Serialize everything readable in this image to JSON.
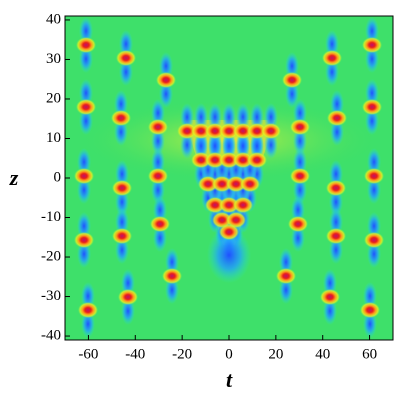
{
  "chart_data": {
    "type": "heatmap",
    "x_label": "t",
    "y_label": "z",
    "xlim": [
      -70,
      70
    ],
    "ylim": [
      -41,
      41
    ],
    "xticks": [
      -60,
      -40,
      -20,
      0,
      20,
      40,
      60
    ],
    "yticks": [
      -40,
      -30,
      -20,
      -10,
      0,
      10,
      20,
      30,
      40
    ]
  }
}
